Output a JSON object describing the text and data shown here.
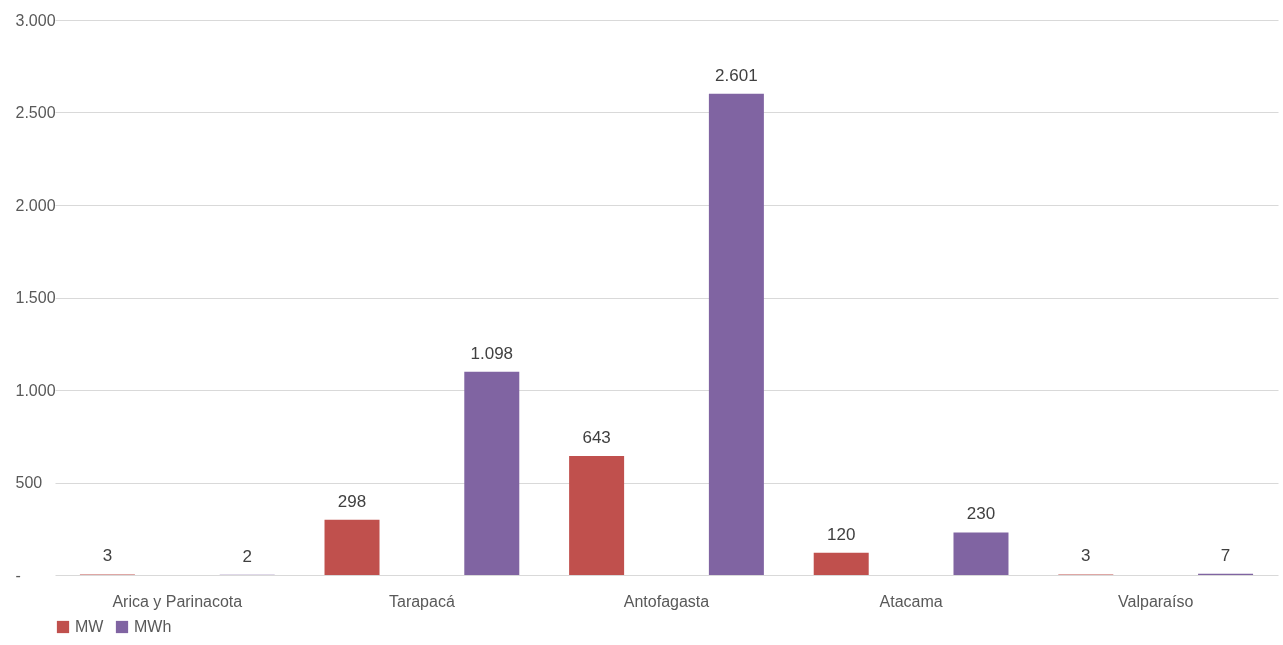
{
  "chart_data": {
    "type": "bar",
    "categories": [
      "Arica y Parinacota",
      "Tarapacá",
      "Antofagasta",
      "Atacama",
      "Valparaíso"
    ],
    "series": [
      {
        "name": "MW",
        "color": "#c0504d",
        "values": [
          3,
          298,
          643,
          120,
          3
        ],
        "value_labels": [
          "3",
          "298",
          "643",
          "120",
          "3"
        ]
      },
      {
        "name": "MWh",
        "color": "#8064a2",
        "values": [
          2,
          1098,
          2601,
          230,
          7
        ],
        "value_labels": [
          "2",
          "1.098",
          "2.601",
          "230",
          "7"
        ]
      }
    ],
    "ylim": [
      0,
      3000
    ],
    "yticks": [
      {
        "value": 0,
        "label": "-"
      },
      500,
      {
        "value": 1000,
        "label": "1.000"
      },
      {
        "value": 1500,
        "label": "1.500"
      },
      {
        "value": 2000,
        "label": "2.000"
      },
      {
        "value": 2500,
        "label": "2.500"
      },
      {
        "value": 3000,
        "label": "3.000"
      }
    ],
    "grid": "y",
    "legend": "bottom"
  }
}
